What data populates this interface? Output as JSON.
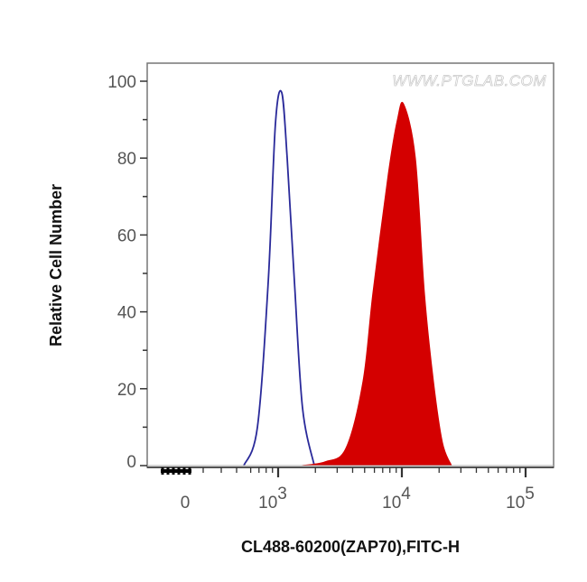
{
  "chart_data": {
    "type": "area",
    "title": "",
    "xlabel": "CL488-60200(ZAP70),FITC-H",
    "ylabel": "Relative Cell Number",
    "x_scale": "biexponential (log above 10^3)",
    "ylim": [
      0,
      100
    ],
    "y_ticks": [
      "0",
      "20",
      "40",
      "60",
      "80",
      "100"
    ],
    "x_ticks": [
      {
        "label": "0",
        "value": 0
      },
      {
        "base": "10",
        "exp": "3",
        "value": 1000
      },
      {
        "base": "10",
        "exp": "4",
        "value": 10000
      },
      {
        "base": "10",
        "exp": "5",
        "value": 100000
      }
    ],
    "grid": false,
    "watermark": "WWW.PTGLAB.COM",
    "series": [
      {
        "style": "outline",
        "color": "#2a2a9a",
        "x": [
          528,
          680,
          832,
          951,
          1070,
          1183,
          1353,
          1574,
          1960
        ],
        "y": [
          0,
          10,
          48,
          89,
          97,
          80,
          48,
          15,
          0
        ]
      },
      {
        "style": "filled",
        "color": "#d40000",
        "x": [
          1521,
          2400,
          3526,
          4853,
          5836,
          7776,
          9200,
          10350,
          12860,
          15210,
          17990,
          21290,
          25190
        ],
        "y": [
          0,
          1,
          4.5,
          22,
          45,
          76,
          90,
          94,
          80,
          45,
          22,
          6,
          0
        ]
      }
    ]
  }
}
